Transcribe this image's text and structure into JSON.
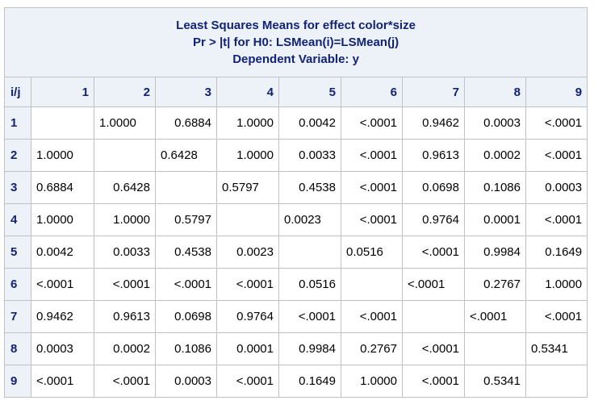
{
  "title_lines": [
    "Least Squares Means for effect color*size",
    "Pr > |t| for H0: LSMean(i)=LSMean(j)",
    "Dependent Variable: y"
  ],
  "corner_label": "i/j",
  "col_headers": [
    "1",
    "2",
    "3",
    "4",
    "5",
    "6",
    "7",
    "8",
    "9"
  ],
  "rows": [
    {
      "label": "1",
      "cells": [
        "",
        "1.0000",
        "0.6884",
        "1.0000",
        "0.0042",
        "<.0001",
        "0.9462",
        "0.0003",
        "<.0001"
      ]
    },
    {
      "label": "2",
      "cells": [
        "1.0000",
        "",
        "0.6428",
        "1.0000",
        "0.0033",
        "<.0001",
        "0.9613",
        "0.0002",
        "<.0001"
      ]
    },
    {
      "label": "3",
      "cells": [
        "0.6884",
        "0.6428",
        "",
        "0.5797",
        "0.4538",
        "<.0001",
        "0.0698",
        "0.1086",
        "0.0003"
      ]
    },
    {
      "label": "4",
      "cells": [
        "1.0000",
        "1.0000",
        "0.5797",
        "",
        "0.0023",
        "<.0001",
        "0.9764",
        "0.0001",
        "<.0001"
      ]
    },
    {
      "label": "5",
      "cells": [
        "0.0042",
        "0.0033",
        "0.4538",
        "0.0023",
        "",
        "0.0516",
        "<.0001",
        "0.9984",
        "0.1649"
      ]
    },
    {
      "label": "6",
      "cells": [
        "<.0001",
        "<.0001",
        "<.0001",
        "<.0001",
        "0.0516",
        "",
        "<.0001",
        "0.2767",
        "1.0000"
      ]
    },
    {
      "label": "7",
      "cells": [
        "0.9462",
        "0.9613",
        "0.0698",
        "0.9764",
        "<.0001",
        "<.0001",
        "",
        "<.0001",
        "<.0001"
      ]
    },
    {
      "label": "8",
      "cells": [
        "0.0003",
        "0.0002",
        "0.1086",
        "0.0001",
        "0.9984",
        "0.2767",
        "<.0001",
        "",
        "0.5341"
      ]
    },
    {
      "label": "9",
      "cells": [
        "<.0001",
        "<.0001",
        "0.0003",
        "<.0001",
        "0.1649",
        "1.0000",
        "<.0001",
        "0.5341",
        ""
      ]
    }
  ],
  "colors": {
    "header_bg": "#edf2f9",
    "header_text": "#112277",
    "border": "#c1c1c1"
  }
}
